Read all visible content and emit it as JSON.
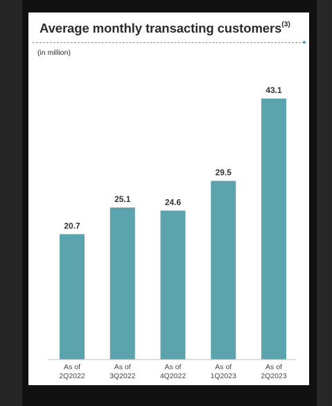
{
  "slide": {
    "title": "Average monthly transacting customers",
    "title_superscript": "(3)",
    "unit_note": "(in million)"
  },
  "colors": {
    "bar": "#5ba3ad",
    "rule": "#4f9fc4",
    "title": "#2b2b2b"
  },
  "chart_data": {
    "type": "bar",
    "title": "Average monthly transacting customers(3)",
    "ylabel": "(in million)",
    "categories": [
      [
        "As of",
        "2Q2022"
      ],
      [
        "As of",
        "3Q2022"
      ],
      [
        "As of",
        "4Q2022"
      ],
      [
        "As of",
        "1Q2023"
      ],
      [
        "As of",
        "2Q2023"
      ]
    ],
    "values": [
      20.7,
      25.1,
      24.6,
      29.5,
      43.1
    ],
    "value_labels": [
      "20.7",
      "25.1",
      "24.6",
      "29.5",
      "43.1"
    ],
    "ylim": [
      0,
      43.1
    ],
    "grid": false,
    "legend": "none"
  }
}
